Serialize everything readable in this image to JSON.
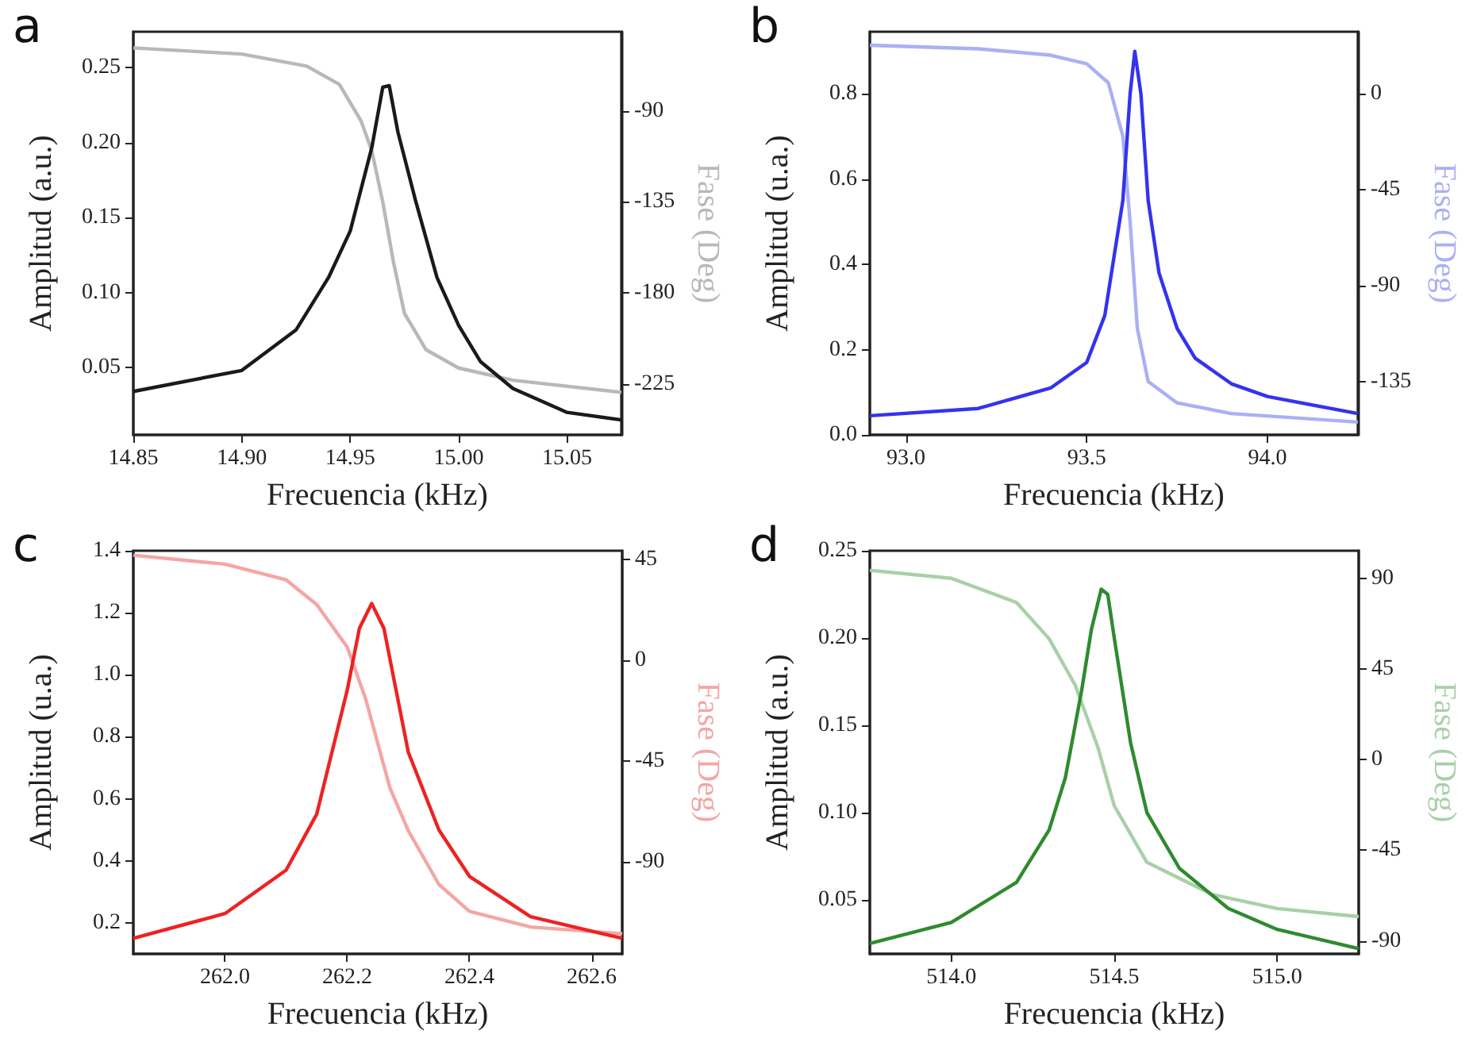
{
  "chart_data": [
    {
      "type": "line",
      "title": "a",
      "xlabel": "Frecuencia (kHz)",
      "ylabel": "Amplitud (a.u.)",
      "y2label": "Fase (Deg)",
      "xlim": [
        14.85,
        15.075
      ],
      "xticks": [
        {
          "value": 14.85,
          "label": "14.85"
        },
        {
          "value": 14.9,
          "label": "14.90"
        },
        {
          "value": 14.95,
          "label": "14.95"
        },
        {
          "value": 15,
          "label": "15.00"
        },
        {
          "value": 15.05,
          "label": "15.05"
        }
      ],
      "ylim": [
        0.005,
        0.274
      ],
      "yticks": [
        {
          "value": 0.05,
          "label": "0.05"
        },
        {
          "value": 0.1,
          "label": "0.10"
        },
        {
          "value": 0.15,
          "label": "0.15"
        },
        {
          "value": 0.2,
          "label": "0.20"
        },
        {
          "value": 0.25,
          "label": "0.25"
        }
      ],
      "y2lim": [
        -250,
        -51
      ],
      "y2ticks": [
        -225,
        -180,
        -135,
        -90
      ],
      "series": [
        {
          "color": "#b8b8b8",
          "axis": "y2",
          "x": [
            14.85,
            14.9,
            14.93,
            14.945,
            14.955,
            14.96,
            14.965,
            14.97,
            14.975,
            14.985,
            15,
            15.025,
            15.075
          ],
          "values": [
            -59,
            -62,
            -68,
            -77,
            -95,
            -110,
            -135,
            -165,
            -190,
            -208,
            -217,
            -223,
            -229
          ]
        },
        {
          "color": "#1a1a1a",
          "x": [
            14.85,
            14.9,
            14.925,
            14.94,
            14.95,
            14.96,
            14.965,
            14.968,
            14.972,
            14.98,
            14.99,
            15,
            15.01,
            15.025,
            15.05,
            15.075
          ],
          "values": [
            0.034,
            0.048,
            0.075,
            0.11,
            0.141,
            0.197,
            0.237,
            0.238,
            0.207,
            0.162,
            0.11,
            0.078,
            0.054,
            0.036,
            0.02,
            0.015
          ]
        }
      ]
    },
    {
      "type": "line",
      "title": "b",
      "xlabel": "Frecuencia (kHz)",
      "ylabel": "Amplitud (u.a.)",
      "y2label": "Fase (Deg)",
      "xlim": [
        92.9,
        94.25
      ],
      "xticks": [
        {
          "value": 93,
          "label": "93.0"
        },
        {
          "value": 93.5,
          "label": "93.5"
        },
        {
          "value": 94,
          "label": "94.0"
        }
      ],
      "ylim": [
        0,
        0.946
      ],
      "yticks": [
        {
          "value": 0,
          "label": "0.0"
        },
        {
          "value": 0.2,
          "label": "0.2"
        },
        {
          "value": 0.4,
          "label": "0.4"
        },
        {
          "value": 0.6,
          "label": "0.6"
        },
        {
          "value": 0.8,
          "label": "0.8"
        }
      ],
      "y2lim": [
        -160,
        29
      ],
      "y2ticks": [
        -135,
        -90,
        -45,
        0
      ],
      "series": [
        {
          "color": "#aab0f5",
          "axis": "y2",
          "x": [
            92.9,
            93.2,
            93.4,
            93.5,
            93.56,
            93.6,
            93.62,
            93.64,
            93.67,
            93.75,
            93.9,
            94.25
          ],
          "values": [
            22.7,
            21,
            18,
            14,
            5,
            -20,
            -60,
            -110,
            -135,
            -145,
            -150,
            -154
          ]
        },
        {
          "color": "#3333ee",
          "x": [
            92.9,
            93.2,
            93.4,
            93.5,
            93.55,
            93.6,
            93.62,
            93.633,
            93.65,
            93.67,
            93.7,
            93.75,
            93.8,
            93.9,
            94,
            94.25
          ],
          "values": [
            0.045,
            0.062,
            0.11,
            0.17,
            0.28,
            0.55,
            0.8,
            0.9,
            0.8,
            0.55,
            0.38,
            0.25,
            0.18,
            0.12,
            0.09,
            0.05
          ]
        }
      ]
    },
    {
      "type": "line",
      "title": "c",
      "xlabel": "Frecuencia (kHz)",
      "ylabel": "Amplitud (u.a.)",
      "y2label": "Fase (Deg)",
      "xlim": [
        261.85,
        262.65
      ],
      "xticks": [
        {
          "value": 262,
          "label": "262.0"
        },
        {
          "value": 262.2,
          "label": "262.2"
        },
        {
          "value": 262.4,
          "label": "262.4"
        },
        {
          "value": 262.6,
          "label": "262.6"
        }
      ],
      "ylim": [
        0.1,
        1.4
      ],
      "yticks": [
        {
          "value": 0.2,
          "label": "0.2"
        },
        {
          "value": 0.4,
          "label": "0.4"
        },
        {
          "value": 0.6,
          "label": "0.6"
        },
        {
          "value": 0.8,
          "label": "0.8"
        },
        {
          "value": 1,
          "label": "1.0"
        },
        {
          "value": 1.2,
          "label": "1.2"
        },
        {
          "value": 1.4,
          "label": "1.4"
        }
      ],
      "y2lim": [
        -131,
        49
      ],
      "y2ticks": [
        -90,
        -45,
        0,
        45
      ],
      "series": [
        {
          "color": "#f5a5a5",
          "axis": "y2",
          "x": [
            261.85,
            262,
            262.1,
            262.15,
            262.2,
            262.23,
            262.27,
            262.3,
            262.35,
            262.4,
            262.5,
            262.65
          ],
          "values": [
            47,
            43,
            36,
            25,
            6,
            -17,
            -57,
            -76,
            -100,
            -112,
            -119,
            -122
          ]
        },
        {
          "color": "#ee2222",
          "x": [
            261.85,
            262,
            262.1,
            262.15,
            262.2,
            262.22,
            262.24,
            262.26,
            262.28,
            262.3,
            262.35,
            262.4,
            262.5,
            262.65
          ],
          "values": [
            0.15,
            0.23,
            0.37,
            0.55,
            0.95,
            1.15,
            1.23,
            1.15,
            0.95,
            0.75,
            0.5,
            0.35,
            0.22,
            0.15
          ]
        }
      ]
    },
    {
      "type": "line",
      "title": "d",
      "xlabel": "Frecuencia (kHz)",
      "ylabel": "Amplitud (a.u.)",
      "y2label": "Fase (Deg)",
      "xlim": [
        513.75,
        515.25
      ],
      "xticks": [
        {
          "value": 514,
          "label": "514.0"
        },
        {
          "value": 514.5,
          "label": "514.5"
        },
        {
          "value": 515,
          "label": "515.0"
        }
      ],
      "ylim": [
        0.019,
        0.25
      ],
      "yticks": [
        {
          "value": 0.05,
          "label": "0.05"
        },
        {
          "value": 0.1,
          "label": "0.10"
        },
        {
          "value": 0.15,
          "label": "0.15"
        },
        {
          "value": 0.2,
          "label": "0.20"
        },
        {
          "value": 0.25,
          "label": "0.25"
        }
      ],
      "y2lim": [
        -96.5,
        103.7
      ],
      "y2ticks": [
        -90,
        -45,
        0,
        45,
        90
      ],
      "series": [
        {
          "color": "#a8d0a8",
          "axis": "y2",
          "x": [
            513.75,
            514,
            514.2,
            514.3,
            514.38,
            514.45,
            514.5,
            514.6,
            514.8,
            515,
            515.25
          ],
          "values": [
            94,
            90,
            78,
            60,
            37,
            6,
            -23,
            -51,
            -67,
            -74,
            -78
          ]
        },
        {
          "color": "#2e8b2e",
          "x": [
            513.75,
            514,
            514.2,
            514.3,
            514.35,
            514.4,
            514.43,
            514.46,
            514.48,
            514.5,
            514.55,
            514.6,
            514.7,
            514.85,
            515,
            515.25
          ],
          "values": [
            0.025,
            0.037,
            0.06,
            0.09,
            0.12,
            0.17,
            0.205,
            0.228,
            0.225,
            0.2,
            0.14,
            0.1,
            0.068,
            0.045,
            0.033,
            0.022
          ]
        }
      ]
    }
  ]
}
